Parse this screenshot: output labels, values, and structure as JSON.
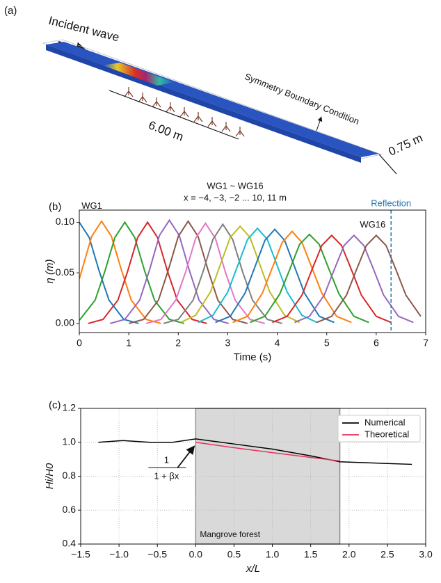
{
  "panel_a": {
    "label": "(a)",
    "incident": "Incident wave",
    "length": "6.00 m",
    "boundary": "Symmetry Boundary Condition",
    "width": "0.75 m"
  },
  "chart_data": [
    {
      "type": "line",
      "panel": "(b)",
      "title": "WG1 ~ WG16",
      "subtitle": "x = −4, −3, −2 ... 10, 11 m",
      "xlabel": "Time (s)",
      "ylabel": "η (m)",
      "xlim": [
        0,
        7
      ],
      "xticks": [
        0,
        1,
        2,
        3,
        4,
        5,
        6,
        7
      ],
      "ylim": [
        -0.009,
        0.112
      ],
      "yticks": [
        {
          "value": 0,
          "label": "0.00"
        },
        {
          "value": 0.05,
          "label": "0.05"
        },
        {
          "value": 0.1,
          "label": "0.10"
        }
      ],
      "grid": false,
      "annotations": [
        {
          "text": "WG1",
          "x": 0,
          "y": 0.1
        },
        {
          "text": "WG16",
          "x": 6.0,
          "y": 0.087
        }
      ],
      "vline": {
        "x": 6.3,
        "label": "Reflection",
        "color": "#1f77b4"
      },
      "series": [
        {
          "color": "#1f77b4",
          "x": [
            0,
            0.2,
            0.4,
            0.6,
            0.9,
            1.2
          ],
          "values": [
            0.1,
            0.085,
            0.052,
            0.023,
            0.004,
            0.0
          ]
        },
        {
          "color": "#ff7f0e",
          "x": [
            0,
            0.25,
            0.45,
            0.65,
            0.85,
            1.05,
            1.35,
            1.65
          ],
          "values": [
            0.044,
            0.086,
            0.101,
            0.086,
            0.053,
            0.023,
            0.004,
            0.0
          ]
        },
        {
          "color": "#2ca02c",
          "x": [
            0,
            0.32,
            0.52,
            0.72,
            0.92,
            1.12,
            1.32,
            1.52,
            1.82,
            2.12
          ],
          "values": [
            0.003,
            0.023,
            0.052,
            0.085,
            0.1,
            0.085,
            0.052,
            0.023,
            0.004,
            0.0
          ]
        },
        {
          "color": "#d62728",
          "x": [
            0.18,
            0.48,
            0.78,
            0.98,
            1.18,
            1.38,
            1.58,
            1.78,
            1.98,
            2.28,
            2.58
          ],
          "values": [
            0.0,
            0.004,
            0.023,
            0.052,
            0.085,
            0.1,
            0.085,
            0.052,
            0.023,
            0.004,
            0.0
          ]
        },
        {
          "color": "#9467bd",
          "x": [
            0.62,
            0.92,
            1.22,
            1.42,
            1.62,
            1.82,
            2.02,
            2.22,
            2.42,
            2.72,
            3.02
          ],
          "values": [
            0.0,
            0.004,
            0.023,
            0.053,
            0.087,
            0.102,
            0.087,
            0.053,
            0.023,
            0.004,
            0.0
          ]
        },
        {
          "color": "#8c564b",
          "x": [
            1.0,
            1.3,
            1.6,
            1.8,
            2.0,
            2.2,
            2.4,
            2.6,
            2.8,
            3.1,
            3.4
          ],
          "values": [
            0.0,
            0.004,
            0.023,
            0.053,
            0.086,
            0.101,
            0.086,
            0.053,
            0.023,
            0.004,
            0.0
          ]
        },
        {
          "color": "#e377c2",
          "x": [
            1.35,
            1.65,
            1.95,
            2.15,
            2.35,
            2.55,
            2.75,
            2.95,
            3.15,
            3.45,
            3.75
          ],
          "values": [
            0.0,
            0.004,
            0.023,
            0.051,
            0.084,
            0.099,
            0.084,
            0.051,
            0.023,
            0.004,
            0.0
          ]
        },
        {
          "color": "#7f7f7f",
          "x": [
            1.7,
            2.0,
            2.3,
            2.5,
            2.7,
            2.9,
            3.1,
            3.3,
            3.5,
            3.8,
            4.1
          ],
          "values": [
            0.0,
            0.004,
            0.023,
            0.051,
            0.083,
            0.098,
            0.083,
            0.051,
            0.023,
            0.004,
            0.0
          ]
        },
        {
          "color": "#bcbd22",
          "x": [
            2.05,
            2.35,
            2.65,
            2.85,
            3.05,
            3.25,
            3.45,
            3.65,
            3.85,
            4.15,
            4.45
          ],
          "values": [
            0.001,
            0.008,
            0.031,
            0.058,
            0.085,
            0.096,
            0.085,
            0.058,
            0.031,
            0.008,
            0.001
          ]
        },
        {
          "color": "#17becf",
          "x": [
            2.4,
            2.7,
            3.0,
            3.2,
            3.4,
            3.6,
            3.8,
            4.0,
            4.2,
            4.5,
            4.8
          ],
          "values": [
            0.001,
            0.008,
            0.031,
            0.057,
            0.083,
            0.094,
            0.083,
            0.057,
            0.031,
            0.008,
            0.001
          ]
        },
        {
          "color": "#1f77b4",
          "x": [
            2.75,
            3.05,
            3.35,
            3.55,
            3.75,
            3.95,
            4.15,
            4.35,
            4.55,
            4.85,
            5.15
          ],
          "values": [
            0.001,
            0.007,
            0.03,
            0.056,
            0.082,
            0.093,
            0.082,
            0.056,
            0.03,
            0.007,
            0.001
          ]
        },
        {
          "color": "#ff7f0e",
          "x": [
            3.1,
            3.4,
            3.7,
            3.9,
            4.1,
            4.3,
            4.5,
            4.7,
            4.9,
            5.2,
            5.5
          ],
          "values": [
            0.001,
            0.007,
            0.03,
            0.055,
            0.08,
            0.091,
            0.08,
            0.055,
            0.03,
            0.007,
            0.001
          ]
        },
        {
          "color": "#2ca02c",
          "x": [
            3.45,
            3.75,
            4.05,
            4.25,
            4.45,
            4.65,
            4.85,
            5.05,
            5.25,
            5.55,
            5.85
          ],
          "values": [
            0.001,
            0.007,
            0.029,
            0.053,
            0.078,
            0.088,
            0.078,
            0.053,
            0.029,
            0.007,
            0.001
          ]
        },
        {
          "color": "#d62728",
          "x": [
            3.9,
            4.2,
            4.5,
            4.7,
            4.9,
            5.1,
            5.3,
            5.5,
            5.7,
            6.0,
            6.3
          ],
          "values": [
            0.001,
            0.007,
            0.028,
            0.053,
            0.077,
            0.087,
            0.077,
            0.053,
            0.028,
            0.007,
            0.001
          ]
        },
        {
          "color": "#9467bd",
          "x": [
            4.35,
            4.65,
            4.95,
            5.15,
            5.35,
            5.55,
            5.75,
            5.95,
            6.15,
            6.45,
            6.75
          ],
          "values": [
            0.001,
            0.007,
            0.028,
            0.053,
            0.077,
            0.087,
            0.077,
            0.053,
            0.028,
            0.007,
            0.001
          ]
        },
        {
          "color": "#8c564b",
          "x": [
            4.8,
            5.1,
            5.4,
            5.6,
            5.8,
            6.0,
            6.2,
            6.4,
            6.6,
            6.9
          ],
          "values": [
            0.001,
            0.007,
            0.028,
            0.053,
            0.077,
            0.087,
            0.077,
            0.053,
            0.028,
            0.007
          ]
        }
      ]
    },
    {
      "type": "line",
      "panel": "(c)",
      "xlabel": "x/L",
      "ylabel": "Hi/H0",
      "xlim": [
        -1.5,
        3.0
      ],
      "xticks": [
        {
          "value": -1.5,
          "label": "−1.5"
        },
        {
          "value": -1.0,
          "label": "−1.0"
        },
        {
          "value": -0.5,
          "label": "−0.5"
        },
        {
          "value": 0,
          "label": "0.0"
        },
        0.5,
        {
          "value": 1.0,
          "label": "1.0"
        },
        1.5,
        {
          "value": 2.0,
          "label": "2.0"
        },
        2.5,
        {
          "value": 3.0,
          "label": "3.0"
        }
      ],
      "ylim": [
        0.4,
        1.2
      ],
      "yticks": [
        0.4,
        0.6,
        0.8,
        {
          "value": 1.0,
          "label": "1.0"
        },
        1.2
      ],
      "grid": true,
      "legend": "upper right",
      "shade": {
        "x0": 0,
        "x1": 1.88,
        "label": "Mangrove forest",
        "color": "#d9d9d9"
      },
      "formula": {
        "numerator": "1",
        "denominator": "1 + βx",
        "x": 0,
        "y": 0.99
      },
      "series": [
        {
          "name": "Numerical",
          "color": "#000000",
          "x": [
            -1.27,
            -0.95,
            -0.6,
            -0.3,
            0,
            0.5,
            1.0,
            1.5,
            1.88,
            2.2,
            2.5,
            2.82
          ],
          "values": [
            1.0,
            1.01,
            1.0,
            1.0,
            1.02,
            0.99,
            0.96,
            0.92,
            0.885,
            0.88,
            0.875,
            0.87
          ]
        },
        {
          "name": "Theoretical",
          "color": "#e8315a",
          "x": [
            0,
            0.5,
            1.0,
            1.5,
            1.88
          ],
          "values": [
            1.0,
            0.968,
            0.939,
            0.911,
            0.89
          ]
        }
      ]
    }
  ]
}
